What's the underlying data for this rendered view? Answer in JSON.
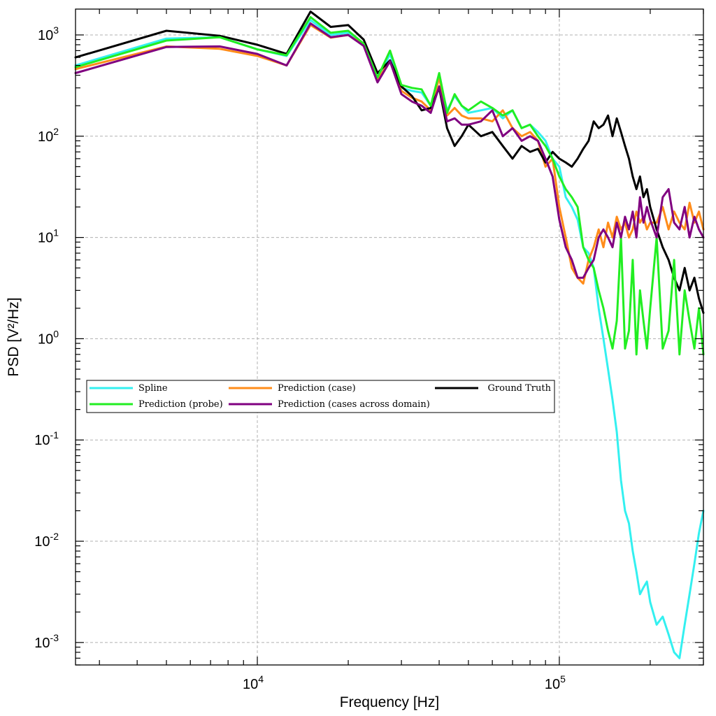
{
  "chart_data": {
    "type": "line",
    "xlabel": "Frequency [Hz]",
    "ylabel": "PSD [V²/Hz]",
    "x_scale": "log",
    "y_scale": "log",
    "xlim": [
      2500,
      300000
    ],
    "ylim": [
      0.0006,
      1800
    ],
    "grid": true,
    "legend_position": "center-left",
    "x_ticks": [
      {
        "value": 10000,
        "base": "10",
        "exp": "4"
      },
      {
        "value": 100000,
        "base": "10",
        "exp": "5"
      }
    ],
    "y_ticks": [
      {
        "value": 1000,
        "base": "10",
        "exp": "3"
      },
      {
        "value": 100,
        "base": "10",
        "exp": "2"
      },
      {
        "value": 10,
        "base": "10",
        "exp": "1"
      },
      {
        "value": 1,
        "base": "10",
        "exp": "0"
      },
      {
        "value": 0.1,
        "base": "10",
        "exp": "-1"
      },
      {
        "value": 0.01,
        "base": "10",
        "exp": "-2"
      },
      {
        "value": 0.001,
        "base": "10",
        "exp": "-3"
      }
    ],
    "series": [
      {
        "name": "Spline",
        "color": "#33f0f0",
        "x": [
          2500,
          5000,
          7500,
          10000,
          12500,
          15000,
          17500,
          20000,
          22500,
          25000,
          27500,
          30000,
          32500,
          35000,
          37500,
          40000,
          42500,
          45000,
          47500,
          50000,
          55000,
          60000,
          65000,
          70000,
          75000,
          80000,
          85000,
          90000,
          95000,
          100000,
          105000,
          110000,
          115000,
          120000,
          125000,
          130000,
          135000,
          140000,
          145000,
          150000,
          155000,
          160000,
          165000,
          170000,
          175000,
          180000,
          185000,
          190000,
          195000,
          200000,
          210000,
          220000,
          230000,
          240000,
          250000,
          260000,
          270000,
          280000,
          290000,
          300000
        ],
        "y": [
          500,
          920,
          950,
          720,
          620,
          1400,
          1000,
          1050,
          800,
          350,
          650,
          300,
          280,
          270,
          200,
          380,
          180,
          250,
          200,
          170,
          180,
          190,
          150,
          180,
          120,
          130,
          110,
          90,
          60,
          50,
          25,
          20,
          15,
          8,
          7,
          5,
          2,
          1.0,
          0.5,
          0.25,
          0.12,
          0.04,
          0.02,
          0.015,
          0.008,
          0.005,
          0.003,
          0.0035,
          0.004,
          0.0025,
          0.0015,
          0.0018,
          0.0012,
          0.0008,
          0.0007,
          0.0015,
          0.003,
          0.006,
          0.012,
          0.02
        ]
      },
      {
        "name": "Prediction (case)",
        "color": "#ff8c1a",
        "x": [
          2500,
          5000,
          7500,
          10000,
          12500,
          15000,
          17500,
          20000,
          22500,
          25000,
          27500,
          30000,
          32500,
          35000,
          37500,
          40000,
          42500,
          45000,
          47500,
          50000,
          55000,
          60000,
          65000,
          70000,
          75000,
          80000,
          85000,
          90000,
          95000,
          100000,
          105000,
          110000,
          115000,
          120000,
          125000,
          130000,
          135000,
          140000,
          145000,
          150000,
          155000,
          160000,
          165000,
          170000,
          175000,
          180000,
          185000,
          190000,
          195000,
          200000,
          210000,
          220000,
          230000,
          240000,
          250000,
          260000,
          270000,
          280000,
          290000,
          300000
        ],
        "y": [
          460,
          770,
          730,
          620,
          500,
          1250,
          940,
          1000,
          800,
          360,
          560,
          280,
          240,
          220,
          180,
          380,
          160,
          190,
          160,
          150,
          150,
          140,
          180,
          120,
          100,
          110,
          90,
          50,
          60,
          20,
          10,
          5,
          4,
          3.5,
          6,
          8,
          12,
          8,
          14,
          10,
          16,
          12,
          14,
          10,
          12,
          18,
          14,
          16,
          12,
          14,
          14,
          20,
          12,
          18,
          14,
          12,
          22,
          14,
          18,
          12
        ]
      },
      {
        "name": "Ground Truth",
        "color": "#000000",
        "x": [
          2500,
          5000,
          7500,
          10000,
          12500,
          15000,
          17500,
          20000,
          22500,
          25000,
          27500,
          30000,
          32500,
          35000,
          37500,
          40000,
          42500,
          45000,
          47500,
          50000,
          55000,
          60000,
          65000,
          70000,
          75000,
          80000,
          85000,
          90000,
          95000,
          100000,
          105000,
          110000,
          115000,
          120000,
          125000,
          130000,
          135000,
          140000,
          145000,
          150000,
          155000,
          160000,
          165000,
          170000,
          175000,
          180000,
          185000,
          190000,
          195000,
          200000,
          210000,
          220000,
          230000,
          240000,
          250000,
          260000,
          270000,
          280000,
          290000,
          300000
        ],
        "y": [
          600,
          1100,
          980,
          800,
          650,
          1700,
          1200,
          1250,
          900,
          420,
          560,
          310,
          250,
          180,
          190,
          300,
          120,
          80,
          100,
          130,
          100,
          110,
          80,
          60,
          80,
          70,
          75,
          55,
          70,
          60,
          55,
          50,
          60,
          75,
          90,
          140,
          120,
          130,
          160,
          100,
          150,
          110,
          80,
          60,
          40,
          30,
          40,
          25,
          30,
          20,
          12,
          8,
          6,
          4,
          3,
          5,
          3,
          4,
          2.5,
          1.8
        ]
      },
      {
        "name": "Prediction (probe)",
        "color": "#22ee22",
        "x": [
          2500,
          5000,
          7500,
          10000,
          12500,
          15000,
          17500,
          20000,
          22500,
          25000,
          27500,
          30000,
          32500,
          35000,
          37500,
          40000,
          42500,
          45000,
          47500,
          50000,
          55000,
          60000,
          65000,
          70000,
          75000,
          80000,
          85000,
          90000,
          95000,
          100000,
          105000,
          110000,
          115000,
          120000,
          125000,
          130000,
          135000,
          140000,
          145000,
          150000,
          155000,
          160000,
          165000,
          170000,
          175000,
          180000,
          185000,
          190000,
          195000,
          200000,
          210000,
          220000,
          230000,
          240000,
          250000,
          260000,
          270000,
          280000,
          290000,
          300000
        ],
        "y": [
          480,
          880,
          950,
          720,
          630,
          1500,
          1050,
          1100,
          820,
          380,
          700,
          320,
          300,
          290,
          200,
          420,
          170,
          260,
          200,
          180,
          220,
          190,
          160,
          180,
          120,
          130,
          100,
          80,
          60,
          40,
          30,
          25,
          20,
          8,
          6,
          5,
          3,
          2,
          1.2,
          0.8,
          1.5,
          10,
          0.8,
          1.2,
          6,
          0.7,
          3,
          1.5,
          0.8,
          2,
          10,
          0.8,
          1.2,
          6,
          0.7,
          3,
          1.5,
          0.8,
          2,
          0.7
        ]
      },
      {
        "name": "Prediction (cases across domain)",
        "color": "#800080",
        "x": [
          2500,
          5000,
          7500,
          10000,
          12500,
          15000,
          17500,
          20000,
          22500,
          25000,
          27500,
          30000,
          32500,
          35000,
          37500,
          40000,
          42500,
          45000,
          47500,
          50000,
          55000,
          60000,
          65000,
          70000,
          75000,
          80000,
          85000,
          90000,
          95000,
          100000,
          105000,
          110000,
          115000,
          120000,
          125000,
          130000,
          135000,
          140000,
          145000,
          150000,
          155000,
          160000,
          165000,
          170000,
          175000,
          180000,
          185000,
          190000,
          195000,
          200000,
          210000,
          220000,
          230000,
          240000,
          250000,
          260000,
          270000,
          280000,
          290000,
          300000
        ],
        "y": [
          420,
          760,
          770,
          650,
          500,
          1300,
          950,
          1000,
          780,
          340,
          550,
          260,
          220,
          200,
          170,
          310,
          140,
          150,
          130,
          130,
          140,
          180,
          100,
          120,
          90,
          100,
          90,
          60,
          40,
          15,
          8,
          6,
          4,
          4,
          5,
          6,
          10,
          12,
          10,
          8,
          14,
          10,
          16,
          12,
          18,
          10,
          25,
          14,
          20,
          15,
          10,
          25,
          30,
          14,
          12,
          20,
          10,
          16,
          12,
          10
        ]
      }
    ]
  }
}
